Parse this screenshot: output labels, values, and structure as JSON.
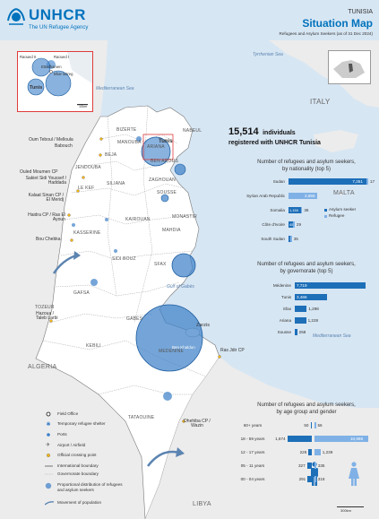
{
  "header": {
    "org": "UNHCR",
    "tagline": "The UN Refugee Agency",
    "country": "TUNISIA",
    "title": "Situation Map",
    "subtitle": "Refugees and Asylum Seekers (as of 31 Dec 2024)"
  },
  "headline": {
    "number": "15,514",
    "word": "individuals",
    "line2": "registered with UNHCR Tunisia"
  },
  "seas": {
    "tyrrhenian": "Tyrrhenian Sea",
    "med_north": "Mediterranean Sea",
    "gulf_gabes": "Gulf of Gabès",
    "med_south": "Mediterranean Sea"
  },
  "countries": {
    "algeria": "ALGERIA",
    "libya": "LIBYA",
    "malta": "MALTA",
    "italy": "ITALY"
  },
  "governorates": [
    "BIZERTE",
    "NABEUL",
    "BEJA",
    "ZAGHOUAN",
    "LE KEF",
    "SILIANA",
    "SOUSSE",
    "MONASTIR",
    "KAIROUAN",
    "MAHDIA",
    "KASSERINE",
    "SIDI BOUZ",
    "SFAX",
    "GAFSA",
    "TOZEUR",
    "GABES",
    "KEBILI",
    "MEDENINE",
    "TATAOUINE",
    "MANOUBA",
    "ARIANA",
    "BEN AROUS",
    "JENDOUBA"
  ],
  "places": {
    "tunis": "Tunis",
    "zarzis": "Zarzis",
    "ben_guerdane": "Ben Khaldun",
    "ras_jdir": "Ras Jdir CP",
    "dhehiba": "Dhehiba CP / Wazin",
    "left_crossings": [
      "Oum Teboul / Melloula",
      "Babouch",
      "Ouled Moumen CP",
      "Sakiet Sidi Youssef / Haddada",
      "Kalaat Sinan CP / El Meridj",
      "Haidra CP / Ras El Ayoun",
      "Bou Chebka",
      "Hazoua / Taleb Larbi"
    ],
    "inset": {
      "raoued": "Raoued I",
      "raoued2": "Raoued II",
      "ettadhamen": "Ettadhamen",
      "bhar": "Bhar lazreg",
      "tunis": "Tunis",
      "scale": "10km"
    }
  },
  "colors": {
    "asylum": "#1d6fb8",
    "refugee": "#7fb1e6",
    "circle_fill": "#3a7fc8",
    "accent_title": "#0072bc",
    "land": "#ececec",
    "sea": "#d7e6f3"
  },
  "bars_nationality": {
    "title_line1": "Number of refugees and asylum seekers,",
    "title_line2": "by nationality (top 5)",
    "legend": {
      "asylum": "Asylum seeker",
      "refugee": "Refugee"
    },
    "rows": [
      {
        "label": "Sudan",
        "asylum": 7251,
        "refugee": 17,
        "asylum_label": "7,251",
        "refugee_label": "17"
      },
      {
        "label": "Syrian Arab Republic",
        "asylum": 0,
        "refugee": 2656,
        "asylum_label": "",
        "refugee_label": "2,656"
      },
      {
        "label": "Somalia",
        "asylum": 1150,
        "refugee": 36,
        "asylum_label": "1,150",
        "refugee_label": "36"
      },
      {
        "label": "Côte d'Ivoire",
        "asylum": 451,
        "refugee": 29,
        "asylum_label": "451",
        "refugee_label": "29"
      },
      {
        "label": "South Sudan",
        "asylum": 181,
        "refugee": 35,
        "asylum_label": "181",
        "refugee_label": "35"
      }
    ]
  },
  "bars_governorate": {
    "title_line1": "Number of refugees and asylum seekers,",
    "title_line2": "by governorate (top 5)",
    "rows": [
      {
        "label": "Médenine",
        "value": 7719,
        "value_label": "7,719"
      },
      {
        "label": "Tunis",
        "value": 3466,
        "value_label": "3,466"
      },
      {
        "label": "Sfax",
        "value": 1298,
        "value_label": "1,298"
      },
      {
        "label": "Ariana",
        "value": 1228,
        "value_label": "1,228"
      },
      {
        "label": "Sousse",
        "value": 258,
        "value_label": "258"
      }
    ]
  },
  "age_gender": {
    "title_line1": "Number of refugees and asylum seekers,",
    "title_line2": "by age group and gender",
    "rows": [
      {
        "label": "60+ years",
        "male": 50,
        "female": 56,
        "male_label": "50",
        "female_label": "56"
      },
      {
        "label": "18 - 59 years",
        "male": 1674,
        "female": 10998,
        "male_label": "1,674",
        "female_label": "10,998"
      },
      {
        "label": "12 - 17 years",
        "male": 226,
        "female": 1239,
        "male_label": "226",
        "female_label": "1,239"
      },
      {
        "label": "05 - 11 years",
        "male": 327,
        "female": 335,
        "male_label": "327",
        "female_label": "335"
      },
      {
        "label": "00 - 04 years",
        "male": 291,
        "female": 318,
        "male_label": "291",
        "female_label": "318"
      }
    ]
  },
  "legend": {
    "field_office": "Field Office",
    "shelter": "Temporary refugee shelter",
    "ports": "Ports",
    "airport": "Airport / Airfield",
    "crossing": "Official crossing point",
    "intl_boundary": "International boundary",
    "gov_boundary": "Governorate boundary",
    "proportional": "Proportional distribution of refugees and asylum seekers",
    "movement": "Movement of population"
  },
  "scale_main": "300km"
}
